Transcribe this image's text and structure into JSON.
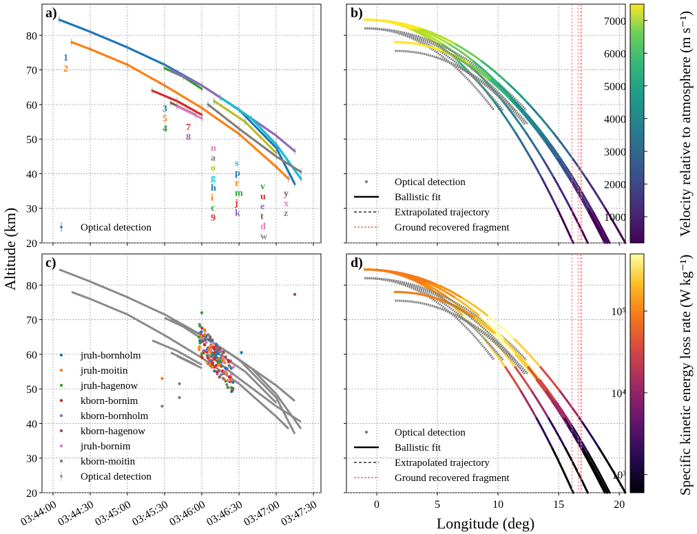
{
  "chart_data": [
    {
      "panel": "a)",
      "type": "scatter",
      "xlabel": "",
      "ylabel": "Altitude (km)",
      "ylim": [
        20,
        89
      ],
      "grid": true,
      "legend": {
        "placement": "bottom-left",
        "entries": [
          "Optical detection"
        ]
      },
      "series": [
        {
          "name": "1",
          "color": "#1f77b4",
          "t": [
            "03:44:05",
            "03:44:30",
            "03:45:00",
            "03:45:30",
            "03:46:00",
            "03:46:30",
            "03:47:00",
            "03:47:15"
          ],
          "alt": [
            84.5,
            81.0,
            76.5,
            71.5,
            65.5,
            58.5,
            47.5,
            37.0
          ]
        },
        {
          "name": "2",
          "color": "#ff7f0e",
          "t": [
            "03:44:15",
            "03:44:30",
            "03:45:00",
            "03:45:30",
            "03:46:00",
            "03:46:30",
            "03:47:00",
            "03:47:10"
          ],
          "alt": [
            78.0,
            76.0,
            71.5,
            65.5,
            59.0,
            51.5,
            42.0,
            38.5
          ]
        },
        {
          "name": "3",
          "color": "#2ca02c",
          "t": [
            "03:45:30",
            "03:45:45",
            "03:46:00"
          ],
          "alt": [
            70.5,
            68.0,
            64.5
          ]
        },
        {
          "name": "5",
          "color": "#9467bd",
          "t": [
            "03:45:35",
            "03:46:00",
            "03:46:30",
            "03:47:00",
            "03:47:15"
          ],
          "alt": [
            70.0,
            65.5,
            58.5,
            51.0,
            46.5
          ]
        },
        {
          "name": "4",
          "color": "#d62728",
          "t": [
            "03:45:20",
            "03:45:40",
            "03:46:00"
          ],
          "alt": [
            64.0,
            61.0,
            57.0
          ]
        },
        {
          "name": "7",
          "color": "#8c564b",
          "t": [
            "03:45:35",
            "03:45:55"
          ],
          "alt": [
            60.5,
            57.0
          ]
        },
        {
          "name": "8",
          "color": "#e377c2",
          "t": [
            "03:45:40",
            "03:46:00"
          ],
          "alt": [
            59.5,
            56.0
          ]
        },
        {
          "name": "n",
          "color": "#17becf",
          "t": [
            "03:46:15",
            "03:46:40",
            "03:47:00",
            "03:47:20"
          ],
          "alt": [
            62.0,
            56.0,
            48.5,
            38.5
          ]
        },
        {
          "name": "a",
          "color": "#bcbd22",
          "t": [
            "03:46:10",
            "03:46:35",
            "03:47:00"
          ],
          "alt": [
            61.0,
            55.0,
            46.0
          ]
        },
        {
          "name": "s",
          "color": "#7f7f7f",
          "t": [
            "03:46:05",
            "03:46:30",
            "03:47:00",
            "03:47:20"
          ],
          "alt": [
            60.0,
            53.0,
            45.0,
            40.5
          ]
        }
      ],
      "labels_left": [
        "1",
        "2"
      ],
      "label_groups": [
        [
          "3",
          "5",
          "4"
        ],
        [
          "7",
          "8"
        ],
        [
          "n",
          "a",
          "o",
          "g",
          "h",
          "i",
          "c",
          "9"
        ],
        [
          "s",
          "p",
          "r",
          "m",
          "j",
          "k"
        ],
        [
          "v",
          "u",
          "e",
          "t",
          "d",
          "w"
        ],
        [
          "y",
          "x",
          "z"
        ]
      ],
      "label_colors": [
        "#1f77b4",
        "#ff7f0e",
        "#2ca02c",
        "#d62728",
        "#9467bd",
        "#8c564b",
        "#e377c2",
        "#7f7f7f",
        "#bcbd22",
        "#17becf"
      ]
    },
    {
      "panel": "b)",
      "type": "line",
      "xlabel": "",
      "ylim": [
        20,
        89
      ],
      "xlim": [
        -2.5,
        20.5
      ],
      "grid": true,
      "legend": {
        "placement": "bottom-left",
        "entries": [
          "Optical detection",
          "Ballistic fit",
          "Extrapolated trajectory",
          "Ground recovered fragment"
        ]
      },
      "colorbar": {
        "label": "Velocity relative to atmosphere (m s⁻¹)",
        "ticks": [
          "1000",
          "2000",
          "3000",
          "4000",
          "5000",
          "6000",
          "7000"
        ],
        "range": [
          200,
          7500
        ]
      },
      "ground_fragments_lon": [
        16.1,
        16.6,
        16.8,
        16.9
      ]
    },
    {
      "panel": "c)",
      "type": "scatter",
      "xlabel": "",
      "ylabel": "Altitude (km)",
      "ylim": [
        20,
        89
      ],
      "grid": true,
      "legend": {
        "placement": "center-left",
        "entries": [
          "jruh-bornholm",
          "jruh-moitin",
          "jruh-hagenow",
          "kborn-bornim",
          "kborn-bornholm",
          "kborn-hagenow",
          "jruh-bornim",
          "kborn-moitin",
          "Optical detection"
        ]
      },
      "series_colors": [
        "#1f77b4",
        "#ff7f0e",
        "#2ca02c",
        "#d62728",
        "#9467bd",
        "#8c564b",
        "#e377c2",
        "#7f7f7f"
      ],
      "x_ticks": [
        "03:44:00",
        "03:44:30",
        "03:45:00",
        "03:45:30",
        "03:46:00",
        "03:46:30",
        "03:47:00",
        "03:47:30"
      ]
    },
    {
      "panel": "d)",
      "type": "line",
      "xlabel": "Longitude (deg)",
      "ylim": [
        20,
        89
      ],
      "xlim": [
        -2.5,
        20.5
      ],
      "x_ticks": [
        "0",
        "5",
        "10",
        "15",
        "20"
      ],
      "grid": true,
      "legend": {
        "placement": "bottom-left",
        "entries": [
          "Optical detection",
          "Ballistic fit",
          "Extrapolated trajectory",
          "Ground recovered fragment"
        ]
      },
      "colorbar": {
        "label": "Specific kinetic energy loss rate (W kg⁻¹)",
        "scale": "log",
        "ticks": [
          "10³",
          "10⁴",
          "10⁵"
        ],
        "range": [
          600,
          500000
        ]
      },
      "ground_fragments_lon": [
        16.1,
        16.6,
        16.8,
        16.9
      ]
    }
  ],
  "shared": {
    "y_ticks": [
      "20",
      "30",
      "40",
      "50",
      "60",
      "70",
      "80"
    ],
    "ylabel": "Altitude (km)",
    "xlabel_bottom_right": "Longitude (deg)"
  }
}
